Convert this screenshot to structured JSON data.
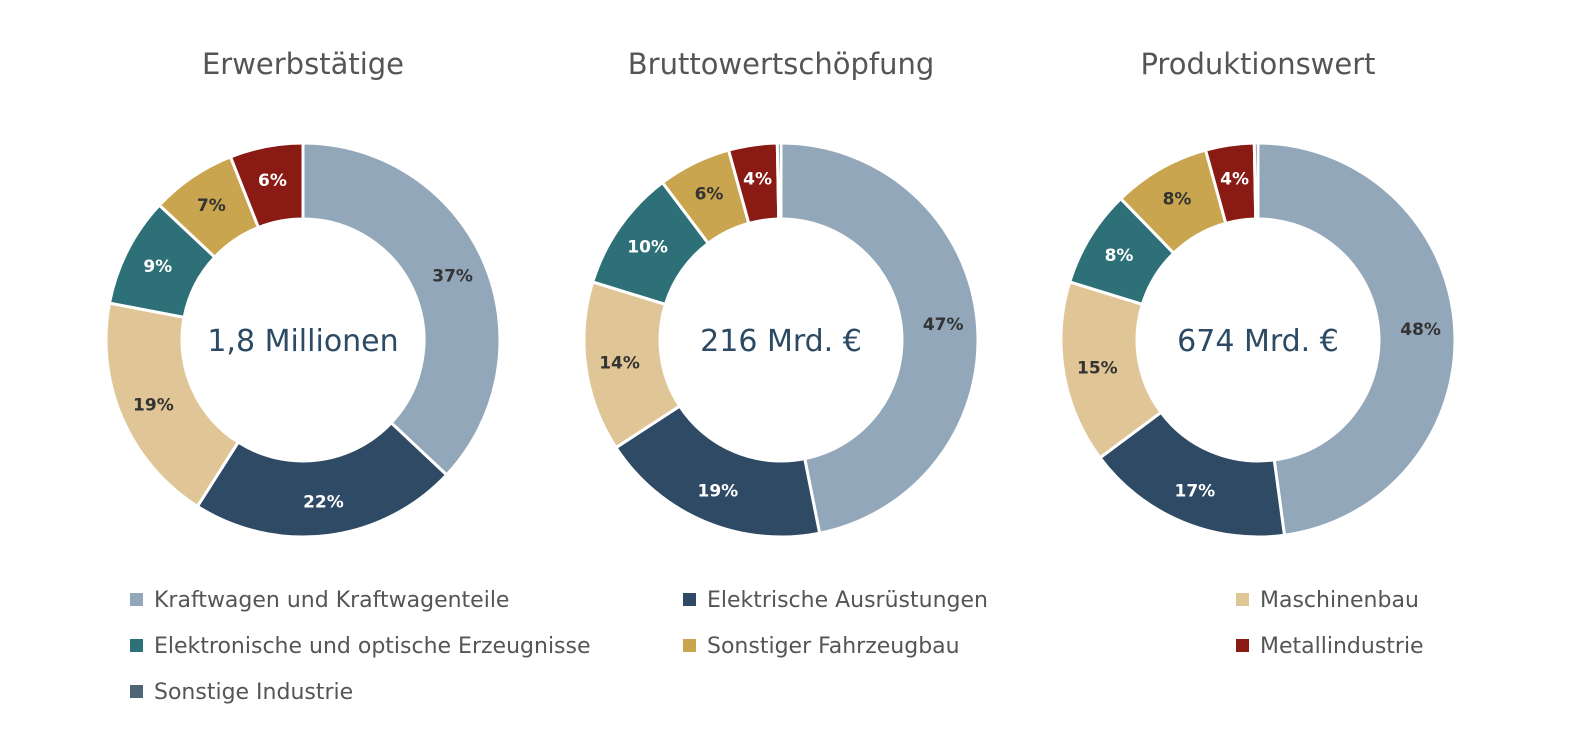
{
  "chart_data": {
    "type": "donut",
    "legend_position": "bottom",
    "categories": [
      "Kraftwagen und Kraftwagenteile",
      "Elektrische Ausrüstungen",
      "Maschinenbau",
      "Elektronische und optische Erzeugnisse",
      "Sonstiger Fahrzeugbau",
      "Metallindustrie",
      "Sonstige Industrie"
    ],
    "colors": [
      "#93a7ba",
      "#2e4a64",
      "#e0c596",
      "#2e7077",
      "#c8a54e",
      "#8a1a14",
      "#4d6575"
    ],
    "label_colors": [
      "#333333",
      "#ffffff",
      "#333333",
      "#ffffff",
      "#333333",
      "#ffffff",
      "#ffffff"
    ],
    "charts": [
      {
        "title": "Erwerbstätige",
        "center_label": "1,8 Millionen",
        "values": [
          37,
          22,
          19,
          9,
          7,
          6,
          0
        ],
        "labels": [
          "37%",
          "22%",
          "19%",
          "9%",
          "7%",
          "6%",
          ""
        ]
      },
      {
        "title": "Bruttowertschöpfung",
        "center_label": "216 Mrd. €",
        "values": [
          47,
          19,
          14,
          10,
          6,
          4,
          0.3
        ],
        "labels": [
          "47%",
          "19%",
          "14%",
          "10%",
          "6%",
          "4%",
          ""
        ]
      },
      {
        "title": "Produktionswert",
        "center_label": "674 Mrd. €",
        "values": [
          48,
          17,
          15,
          8,
          8,
          4,
          0.3
        ],
        "labels": [
          "48%",
          "17%",
          "15%",
          "8%",
          "8%",
          "4%",
          ""
        ]
      }
    ]
  }
}
